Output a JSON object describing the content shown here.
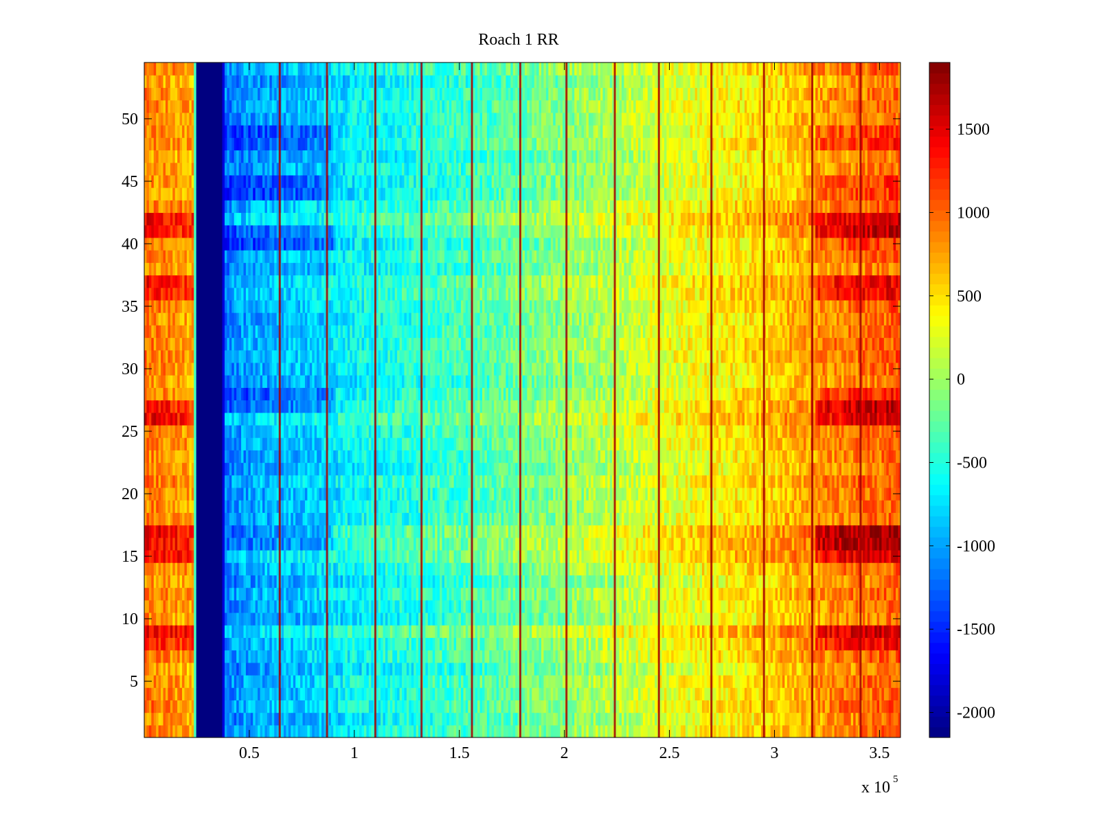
{
  "chart_data": {
    "type": "heatmap",
    "title": "Roach 1 RR",
    "xlabel": "",
    "ylabel": "",
    "x_multiplier_label": {
      "base": "x 10",
      "exponent": "5"
    },
    "xlim": [
      0,
      3.6
    ],
    "ylim": [
      0.5,
      54.5
    ],
    "x_ticks": [
      0.5,
      1,
      1.5,
      2,
      2.5,
      3,
      3.5
    ],
    "x_tick_labels": [
      "0.5",
      "1",
      "1.5",
      "2",
      "2.5",
      "3",
      "3.5"
    ],
    "y_ticks": [
      5,
      10,
      15,
      20,
      25,
      30,
      35,
      40,
      45,
      50
    ],
    "y_tick_labels": [
      "5",
      "10",
      "15",
      "20",
      "25",
      "30",
      "35",
      "40",
      "45",
      "50"
    ],
    "n_rows": 54,
    "colormap": "jet",
    "clim": [
      -2150,
      1900
    ],
    "colorbar_ticks": [
      -2000,
      -1500,
      -1000,
      -500,
      0,
      500,
      1000,
      1500
    ],
    "colorbar_tick_labels": [
      "-2000",
      "-1500",
      "-1000",
      "-500",
      "0",
      "500",
      "1000",
      "1500"
    ],
    "column_profile": {
      "x": [
        0.0,
        0.24,
        0.245,
        0.375,
        0.38,
        0.5,
        0.8,
        1.0,
        1.5,
        2.0,
        2.5,
        3.0,
        3.3,
        3.6
      ],
      "value": [
        900,
        700,
        -2150,
        -2150,
        -1150,
        -1000,
        -850,
        -650,
        -400,
        -100,
        250,
        550,
        850,
        1000
      ]
    },
    "warm_rows": [
      8,
      9,
      15,
      16,
      17,
      26,
      27,
      36,
      37,
      41,
      42
    ],
    "cool_rows": [
      16,
      17,
      27,
      28,
      40,
      41,
      44,
      45,
      48,
      49
    ],
    "stripe_lines_x": [
      0.645,
      0.87,
      1.1,
      1.32,
      1.56,
      1.79,
      2.01,
      2.24,
      2.45,
      2.7,
      2.95,
      3.18,
      3.41
    ]
  }
}
